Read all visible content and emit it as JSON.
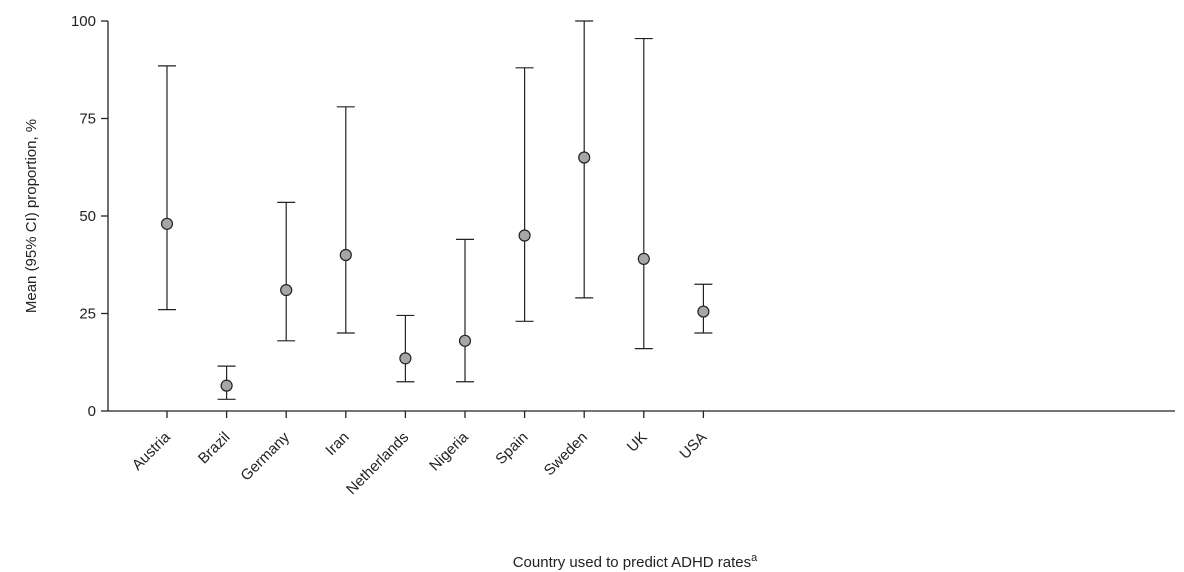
{
  "chart_data": {
    "type": "scatter",
    "subtype": "point-with-error-bars",
    "xlabel": "Country used to predict ADHD rates",
    "xlabel_superscript": "a",
    "ylabel": "Mean (95% CI) proportion, %",
    "ylim": [
      0,
      100
    ],
    "yticks": [
      "0",
      "25",
      "50",
      "75",
      "100"
    ],
    "grid": false,
    "categories": [
      "Austria",
      "Brazil",
      "Germany",
      "Iran",
      "Netherlands",
      "Nigeria",
      "Spain",
      "Sweden",
      "UK",
      "USA"
    ],
    "series": [
      {
        "mean": [
          48,
          6.5,
          31,
          40,
          13.5,
          18,
          45,
          65,
          39,
          25.5
        ],
        "lower": [
          26,
          3,
          18,
          20,
          7.5,
          7.5,
          23,
          29,
          16,
          20
        ],
        "upper": [
          88.5,
          11.5,
          53.5,
          78,
          24.5,
          44,
          88,
          100,
          95.5,
          32.5
        ]
      }
    ],
    "colors": {
      "marker_fill": "#a6a6a6",
      "marker_stroke": "#222222",
      "line": "#222222"
    }
  }
}
